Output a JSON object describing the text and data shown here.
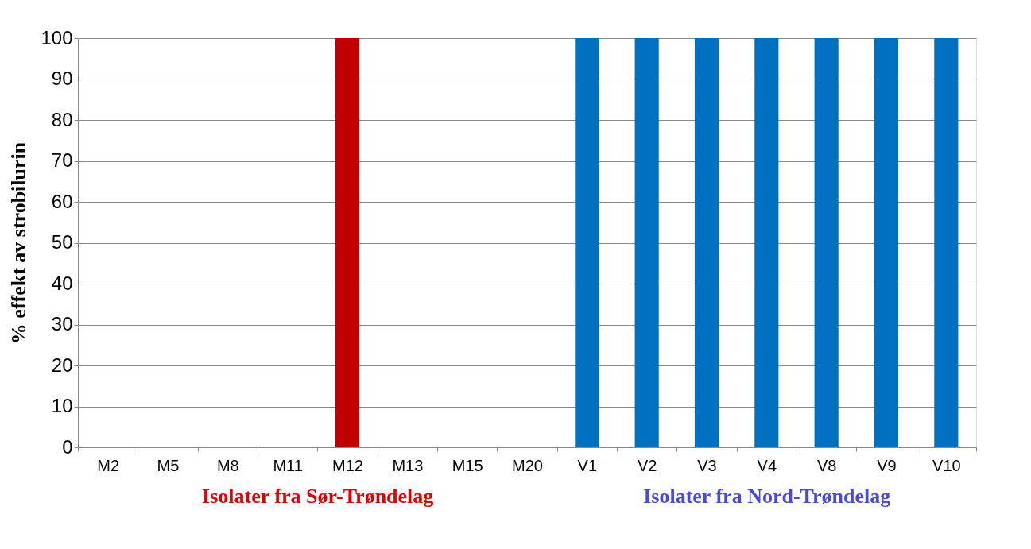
{
  "chart_data": {
    "type": "bar",
    "ylabel": "% effekt av strobilurin",
    "categories": [
      "M2",
      "M5",
      "M8",
      "M11",
      "M12",
      "M13",
      "M15",
      "M20",
      "V1",
      "V2",
      "V3",
      "V4",
      "V8",
      "V9",
      "V10"
    ],
    "values": [
      0,
      0,
      0,
      0,
      100,
      0,
      0,
      0,
      100,
      100,
      100,
      100,
      100,
      100,
      100
    ],
    "colors": [
      "#c00000",
      "#c00000",
      "#c00000",
      "#c00000",
      "#c00000",
      "#c00000",
      "#c00000",
      "#c00000",
      "#0070c0",
      "#0070c0",
      "#0070c0",
      "#0070c0",
      "#0070c0",
      "#0070c0",
      "#0070c0"
    ],
    "ylim": [
      0,
      100
    ],
    "yticks": [
      0,
      10,
      20,
      30,
      40,
      50,
      60,
      70,
      80,
      90,
      100
    ],
    "grid": "y",
    "annotations": [
      "Isolater fra Sør-Trøndelag",
      "Isolater fra Nord-Trøndelag"
    ]
  }
}
